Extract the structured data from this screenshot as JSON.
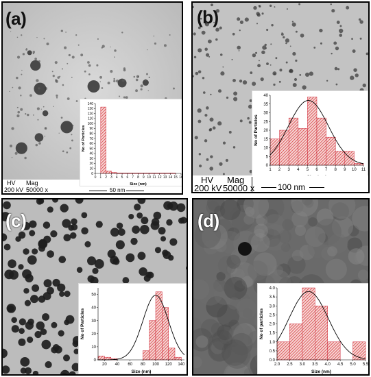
{
  "panels": {
    "a": {
      "label": "(a)",
      "info": {
        "hv_label": "HV",
        "hv_value": "200 kV",
        "mag_label": "Mag",
        "mag_value": "50000 x"
      },
      "scale_bar": "50 nm"
    },
    "b": {
      "label": "(b)",
      "info": {
        "hv_label": "HV",
        "hv_value": "200 kV",
        "mag_label": "Mag",
        "mag_value": "50000 x"
      },
      "scale_bar": "100 nm"
    },
    "c": {
      "label": "(c)"
    },
    "d": {
      "label": "(d)"
    }
  },
  "chart_data": [
    {
      "panel": "a",
      "type": "bar",
      "xlabel": "Size (nm)",
      "ylabel": "No of Particles",
      "categories": [
        "0",
        "1",
        "2",
        "3",
        "4",
        "5",
        "6",
        "7",
        "8",
        "9",
        "10",
        "11",
        "12",
        "13",
        "14",
        "15",
        "16"
      ],
      "x_range": [
        0,
        16
      ],
      "ylim": [
        0,
        140
      ],
      "y_ticks": [
        0,
        10,
        20,
        30,
        40,
        50,
        60,
        70,
        80,
        90,
        100,
        110,
        120,
        130,
        140
      ],
      "bins": [
        [
          1,
          2,
          133
        ],
        [
          2,
          3,
          5
        ],
        [
          3,
          4,
          2
        ],
        [
          4,
          5,
          1
        ],
        [
          5,
          6,
          1
        ],
        [
          6,
          7,
          1
        ],
        [
          7,
          8,
          1
        ],
        [
          8,
          9,
          1
        ],
        [
          9,
          10,
          1
        ],
        [
          10,
          11,
          1
        ],
        [
          11,
          12,
          1
        ],
        [
          12,
          13,
          1
        ],
        [
          13,
          14,
          1
        ],
        [
          14,
          15,
          1
        ]
      ],
      "fit_curve": false
    },
    {
      "panel": "b",
      "type": "bar",
      "xlabel": "Size (nm)",
      "ylabel": "No of Particles",
      "x_ticks": [
        1,
        2,
        3,
        4,
        5,
        6,
        7,
        8,
        9,
        10,
        11
      ],
      "x_range": [
        1,
        11
      ],
      "ylim": [
        0,
        40
      ],
      "y_ticks": [
        0,
        5,
        10,
        15,
        20,
        25,
        30,
        35,
        40
      ],
      "bins": [
        [
          1,
          2,
          15
        ],
        [
          2,
          3,
          20
        ],
        [
          3,
          4,
          27
        ],
        [
          4,
          5,
          21
        ],
        [
          5,
          6,
          39
        ],
        [
          6,
          7,
          27
        ],
        [
          7,
          8,
          16
        ],
        [
          8,
          9,
          8
        ],
        [
          9,
          10,
          8
        ],
        [
          10,
          11,
          1
        ]
      ],
      "fit_curve": true,
      "fit_peak_x": 5.1
    },
    {
      "panel": "c",
      "type": "bar",
      "xlabel": "Size (nm)",
      "ylabel": "No of Particles",
      "x_ticks": [
        20,
        40,
        60,
        80,
        100,
        120,
        140
      ],
      "x_range": [
        10,
        145
      ],
      "ylim": [
        0,
        55
      ],
      "y_ticks": [
        0,
        10,
        20,
        30,
        40,
        50
      ],
      "bins": [
        [
          10,
          20,
          3
        ],
        [
          20,
          30,
          2
        ],
        [
          30,
          40,
          1
        ],
        [
          80,
          90,
          7
        ],
        [
          90,
          100,
          30
        ],
        [
          100,
          110,
          52
        ],
        [
          110,
          120,
          40
        ],
        [
          120,
          130,
          9
        ],
        [
          130,
          140,
          2
        ]
      ],
      "fit_curve": true,
      "fit_peak_x": 100
    },
    {
      "panel": "d",
      "type": "bar",
      "xlabel": "Size (nm)",
      "ylabel": "No of particles",
      "x_ticks": [
        2.0,
        2.5,
        3.0,
        3.5,
        4.0,
        4.5,
        5.0,
        5.5
      ],
      "x_range": [
        2.0,
        5.5
      ],
      "ylim": [
        0,
        4.0
      ],
      "y_ticks": [
        0.0,
        0.5,
        1.0,
        1.5,
        2.0,
        2.5,
        3.0,
        3.5,
        4.0
      ],
      "bins": [
        [
          2.0,
          2.5,
          1
        ],
        [
          2.5,
          3.0,
          2
        ],
        [
          3.0,
          3.5,
          4
        ],
        [
          3.5,
          4.0,
          3
        ],
        [
          4.0,
          4.5,
          1
        ],
        [
          5.0,
          5.5,
          1
        ]
      ],
      "fit_curve": true,
      "fit_peak_x": 3.25
    }
  ]
}
